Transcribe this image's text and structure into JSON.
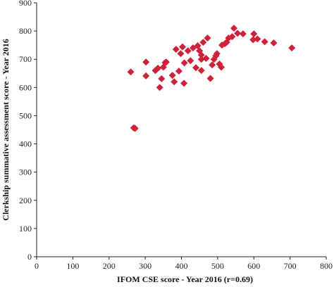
{
  "chart_data": {
    "type": "scatter",
    "xlabel": "IFOM CSE score - Year 2016 (r=0.69)",
    "ylabel": "Clerkship  summative assessment score - Year  2016",
    "xlim": [
      0,
      800
    ],
    "ylim": [
      0,
      900
    ],
    "xticks": [
      "0",
      "100",
      "200",
      "300",
      "400",
      "500",
      "600",
      "700",
      "800"
    ],
    "yticks": [
      "0",
      "100",
      "200",
      "300",
      "400",
      "500",
      "600",
      "700",
      "800",
      "900"
    ],
    "grid": false,
    "marker": "diamond",
    "marker_color": "#d0213a",
    "series": [
      {
        "points": [
          [
            260,
            655
          ],
          [
            268,
            457
          ],
          [
            272,
            455
          ],
          [
            302,
            690
          ],
          [
            302,
            641
          ],
          [
            328,
            660
          ],
          [
            335,
            668
          ],
          [
            340,
            600
          ],
          [
            345,
            631
          ],
          [
            350,
            672
          ],
          [
            355,
            688
          ],
          [
            358,
            690
          ],
          [
            375,
            643
          ],
          [
            380,
            620
          ],
          [
            385,
            735
          ],
          [
            393,
            658
          ],
          [
            398,
            720
          ],
          [
            403,
            744
          ],
          [
            407,
            615
          ],
          [
            408,
            687
          ],
          [
            418,
            730
          ],
          [
            425,
            695
          ],
          [
            432,
            740
          ],
          [
            440,
            670
          ],
          [
            445,
            748
          ],
          [
            450,
            730
          ],
          [
            455,
            700
          ],
          [
            455,
            715
          ],
          [
            455,
            660
          ],
          [
            460,
            760
          ],
          [
            468,
            703
          ],
          [
            472,
            775
          ],
          [
            480,
            632
          ],
          [
            485,
            680
          ],
          [
            490,
            700
          ],
          [
            495,
            712
          ],
          [
            498,
            720
          ],
          [
            505,
            683
          ],
          [
            510,
            672
          ],
          [
            512,
            750
          ],
          [
            520,
            755
          ],
          [
            525,
            760
          ],
          [
            530,
            775
          ],
          [
            540,
            780
          ],
          [
            545,
            810
          ],
          [
            555,
            792
          ],
          [
            570,
            790
          ],
          [
            598,
            769
          ],
          [
            600,
            790
          ],
          [
            610,
            772
          ],
          [
            630,
            762
          ],
          [
            655,
            758
          ],
          [
            705,
            740
          ]
        ]
      }
    ]
  }
}
